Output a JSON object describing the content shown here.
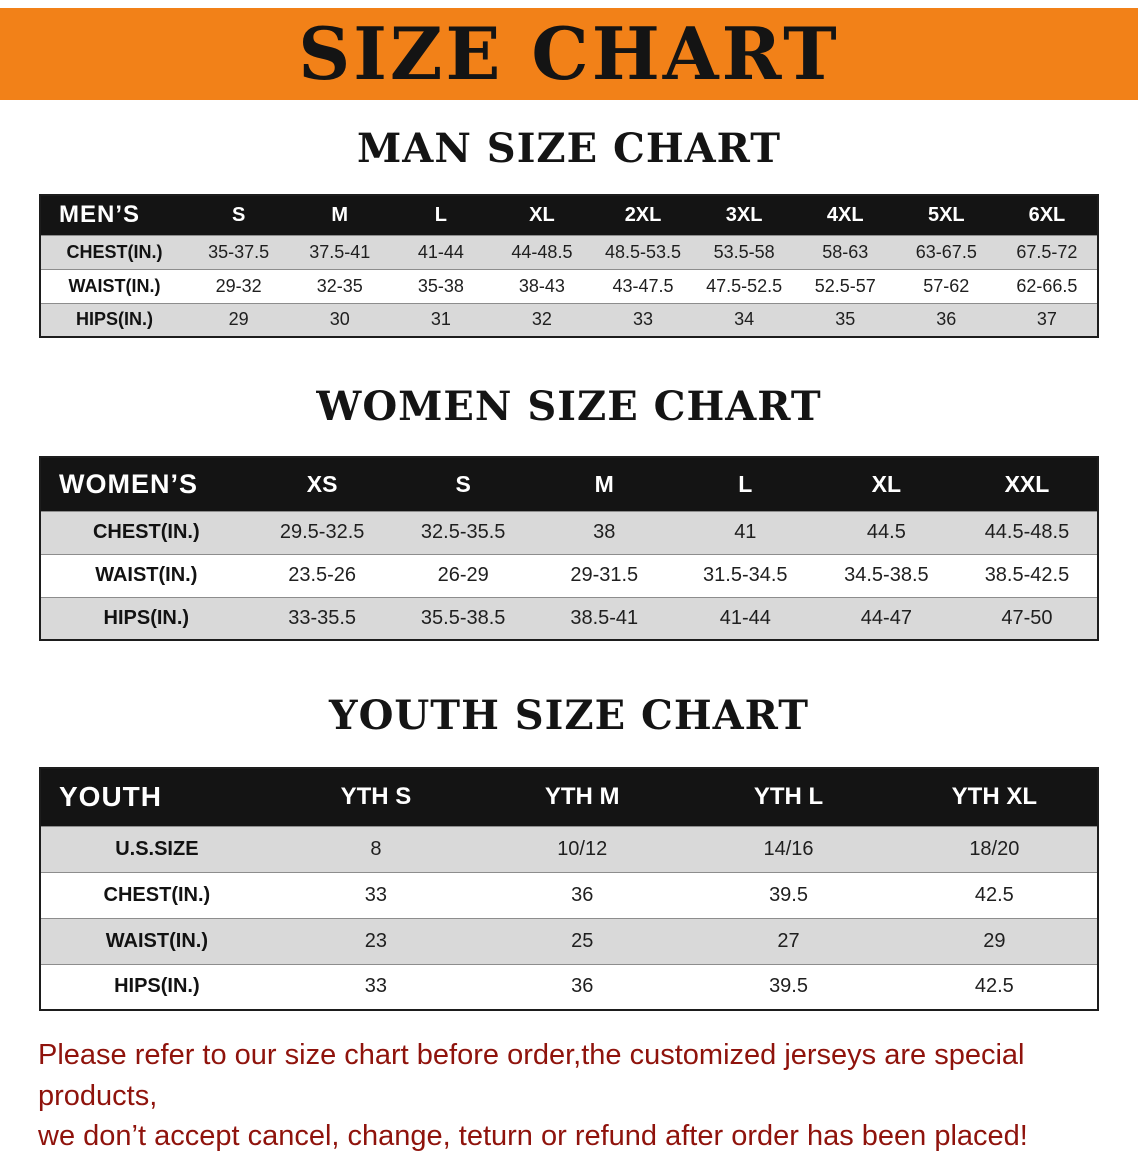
{
  "banner": {
    "title": "SIZE CHART",
    "bg_color": "#f28118",
    "text_color": "#141414"
  },
  "sections": [
    {
      "heading": "MAN SIZE CHART",
      "table": {
        "header": [
          "MEN’S",
          "S",
          "M",
          "L",
          "XL",
          "2XL",
          "3XL",
          "4XL",
          "5XL",
          "6XL"
        ],
        "rows": [
          [
            "CHEST(IN.)",
            "35-37.5",
            "37.5-41",
            "41-44",
            "44-48.5",
            "48.5-53.5",
            "53.5-58",
            "58-63",
            "63-67.5",
            "67.5-72"
          ],
          [
            "WAIST(IN.)",
            "29-32",
            "32-35",
            "35-38",
            "38-43",
            "43-47.5",
            "47.5-52.5",
            "52.5-57",
            "57-62",
            "62-66.5"
          ],
          [
            "HIPS(IN.)",
            "29",
            "30",
            "31",
            "32",
            "33",
            "34",
            "35",
            "36",
            "37"
          ]
        ]
      }
    },
    {
      "heading": "WOMEN SIZE CHART",
      "table": {
        "header": [
          "WOMEN’S",
          "XS",
          "S",
          "M",
          "L",
          "XL",
          "XXL"
        ],
        "rows": [
          [
            "CHEST(IN.)",
            "29.5-32.5",
            "32.5-35.5",
            "38",
            "41",
            "44.5",
            "44.5-48.5"
          ],
          [
            "WAIST(IN.)",
            "23.5-26",
            "26-29",
            "29-31.5",
            "31.5-34.5",
            "34.5-38.5",
            "38.5-42.5"
          ],
          [
            "HIPS(IN.)",
            "33-35.5",
            "35.5-38.5",
            "38.5-41",
            "41-44",
            "44-47",
            "47-50"
          ]
        ]
      }
    },
    {
      "heading": "YOUTH SIZE CHART",
      "table": {
        "header": [
          "YOUTH",
          "YTH S",
          "YTH M",
          "YTH L",
          "YTH XL"
        ],
        "rows": [
          [
            "U.S.SIZE",
            "8",
            "10/12",
            "14/16",
            "18/20"
          ],
          [
            "CHEST(IN.)",
            "33",
            "36",
            "39.5",
            "42.5"
          ],
          [
            "WAIST(IN.)",
            "23",
            "25",
            "27",
            "29"
          ],
          [
            "HIPS(IN.)",
            "33",
            "36",
            "39.5",
            "42.5"
          ]
        ]
      }
    }
  ],
  "disclaimer": {
    "color": "#8f130c",
    "lines": [
      "Please refer to our size chart before order,the customized jerseys are special products,",
      "we don’t accept cancel, change, teturn or refund after order has been placed!"
    ]
  }
}
